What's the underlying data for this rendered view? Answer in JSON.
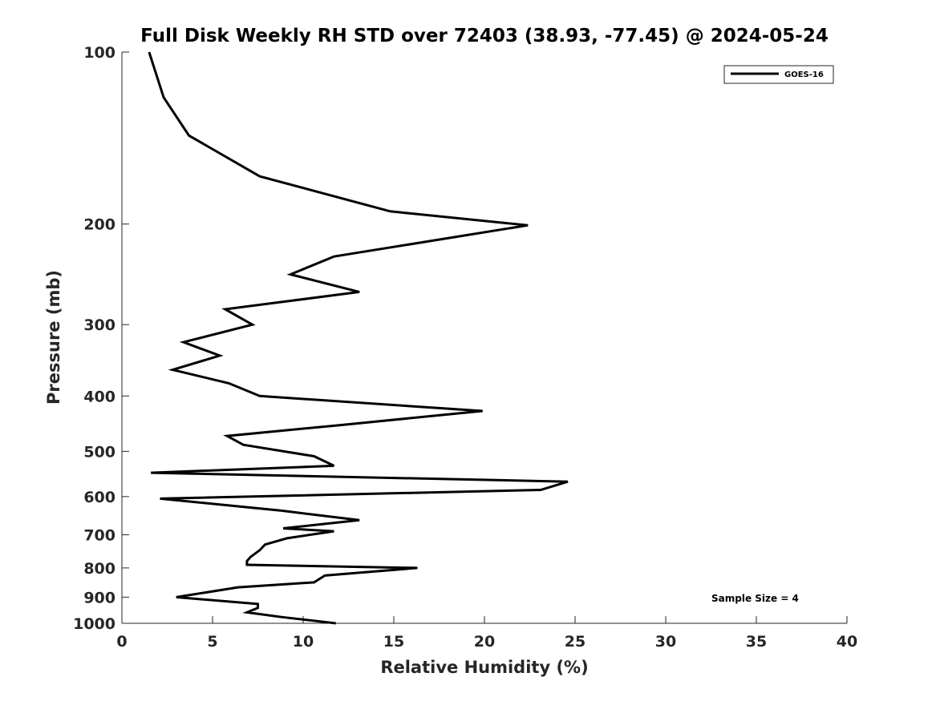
{
  "chart_data": {
    "type": "line",
    "title": "Full Disk Weekly RH STD over 72403 (38.93, -77.45) @ 2024-05-24",
    "xlabel": "Relative Humidity (%)",
    "ylabel": "Pressure (mb)",
    "xlim": [
      0,
      40
    ],
    "ylim": [
      100,
      1000
    ],
    "yscale": "log",
    "y_reversed": true,
    "x_ticks": [
      "0",
      "5",
      "10",
      "15",
      "20",
      "25",
      "30",
      "35",
      "40"
    ],
    "y_ticks": [
      "100",
      "200",
      "300",
      "400",
      "500",
      "600",
      "700",
      "800",
      "900",
      "1000"
    ],
    "grid": false,
    "legend_position": "top-right",
    "annotation": "Sample Size = 4",
    "series": [
      {
        "name": "GOES-16",
        "color": "#000000",
        "x": [
          1.5,
          2.3,
          3.7,
          7.6,
          14.8,
          22.4,
          11.7,
          9.3,
          13.1,
          5.7,
          7.2,
          3.4,
          5.4,
          2.8,
          5.9,
          7.6,
          19.9,
          12.0,
          5.8,
          6.7,
          10.6,
          11.7,
          1.6,
          24.6,
          23.1,
          2.1,
          8.8,
          13.1,
          8.9,
          11.7,
          9.1,
          7.9,
          7.6,
          7.1,
          6.9,
          6.9,
          16.3,
          11.2,
          10.6,
          6.4,
          3.0,
          7.5,
          7.5,
          6.9,
          8.8,
          11.8
        ],
        "y": [
          100,
          120,
          140,
          165,
          190,
          201,
          228,
          245,
          263,
          282,
          300,
          322,
          340,
          360,
          380,
          400,
          425,
          450,
          470,
          487,
          510,
          530,
          545,
          565,
          584,
          605,
          635,
          660,
          682,
          690,
          710,
          728,
          745,
          765,
          778,
          790,
          800,
          825,
          848,
          865,
          900,
          925,
          940,
          957,
          975,
          1000
        ]
      }
    ]
  }
}
